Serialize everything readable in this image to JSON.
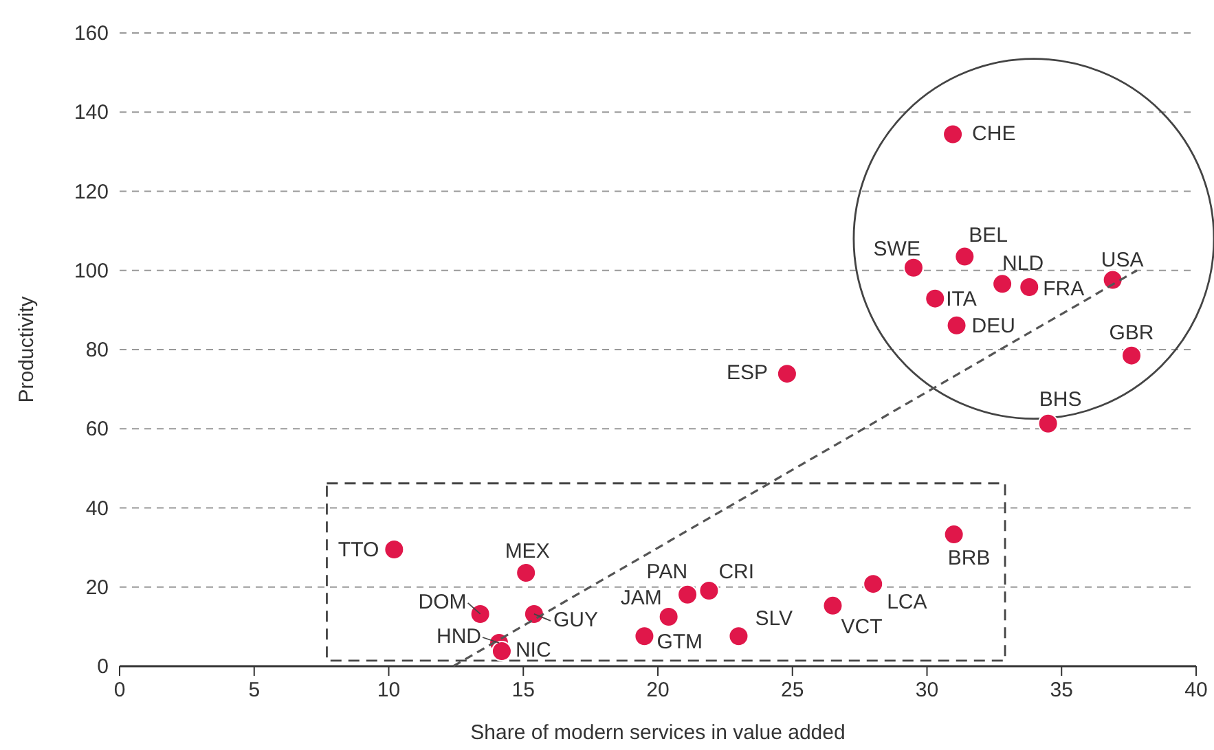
{
  "chart_data": {
    "type": "scatter",
    "xlabel": "Share of modern services in value added",
    "ylabel": "Productivity",
    "xlim": [
      0,
      40
    ],
    "xticks": [
      0,
      5,
      10,
      15,
      20,
      25,
      30,
      35,
      40
    ],
    "ylim": [
      0,
      160
    ],
    "yticks": [
      0,
      20,
      40,
      60,
      80,
      100,
      120,
      140,
      160
    ],
    "grid": "y",
    "marker": "circle",
    "series": [
      {
        "color": "#e0174a",
        "x": [
          30.96,
          29.5,
          31.4,
          32.8,
          36.9,
          30.3,
          33.8,
          31.1,
          37.6,
          24.8,
          34.5,
          10.2,
          15.1,
          31.0,
          21.9,
          21.1,
          28.0,
          13.4,
          15.4,
          20.4,
          26.5,
          14.1,
          14.2,
          19.5,
          23.0
        ],
        "values": [
          134.4,
          100.7,
          103.5,
          96.6,
          97.6,
          92.9,
          95.8,
          86.1,
          78.5,
          73.9,
          61.3,
          29.5,
          23.6,
          33.3,
          19.1,
          18.1,
          20.8,
          13.2,
          13.2,
          12.5,
          15.3,
          5.9,
          3.8,
          7.6,
          7.6
        ]
      },
      {
        "type": "line",
        "color": "#555555",
        "line_style": "dashed",
        "marker": "none",
        "x": [
          12.4,
          37.8
        ],
        "values": [
          0,
          100
        ]
      }
    ],
    "annotations": [
      {
        "text": "CHE",
        "x": 30.96,
        "y": 134.4
      },
      {
        "text": "SWE",
        "x": 29.5,
        "y": 100.7
      },
      {
        "text": "BEL",
        "x": 31.4,
        "y": 103.5
      },
      {
        "text": "NLD",
        "x": 32.8,
        "y": 96.6
      },
      {
        "text": "USA",
        "x": 36.9,
        "y": 97.6
      },
      {
        "text": "ITA",
        "x": 30.3,
        "y": 92.9
      },
      {
        "text": "FRA",
        "x": 33.8,
        "y": 95.8
      },
      {
        "text": "DEU",
        "x": 31.1,
        "y": 86.1
      },
      {
        "text": "GBR",
        "x": 37.6,
        "y": 78.5
      },
      {
        "text": "ESP",
        "x": 24.8,
        "y": 73.9
      },
      {
        "text": "BHS",
        "x": 34.5,
        "y": 61.3
      },
      {
        "text": "TTO",
        "x": 10.2,
        "y": 29.5
      },
      {
        "text": "MEX",
        "x": 15.1,
        "y": 23.6
      },
      {
        "text": "BRB",
        "x": 31.0,
        "y": 33.3
      },
      {
        "text": "CRI",
        "x": 21.9,
        "y": 19.1
      },
      {
        "text": "PAN",
        "x": 21.1,
        "y": 18.1
      },
      {
        "text": "LCA",
        "x": 28.0,
        "y": 20.8
      },
      {
        "text": "DOM",
        "x": 13.4,
        "y": 13.2
      },
      {
        "text": "GUY",
        "x": 15.4,
        "y": 13.2
      },
      {
        "text": "JAM",
        "x": 20.4,
        "y": 12.5
      },
      {
        "text": "VCT",
        "x": 26.5,
        "y": 15.3
      },
      {
        "text": "HND",
        "x": 14.1,
        "y": 5.9
      },
      {
        "text": "NIC",
        "x": 14.2,
        "y": 3.8
      },
      {
        "text": "GTM",
        "x": 19.5,
        "y": 7.6
      },
      {
        "text": "SLV",
        "x": 23.0,
        "y": 7.6
      }
    ]
  }
}
